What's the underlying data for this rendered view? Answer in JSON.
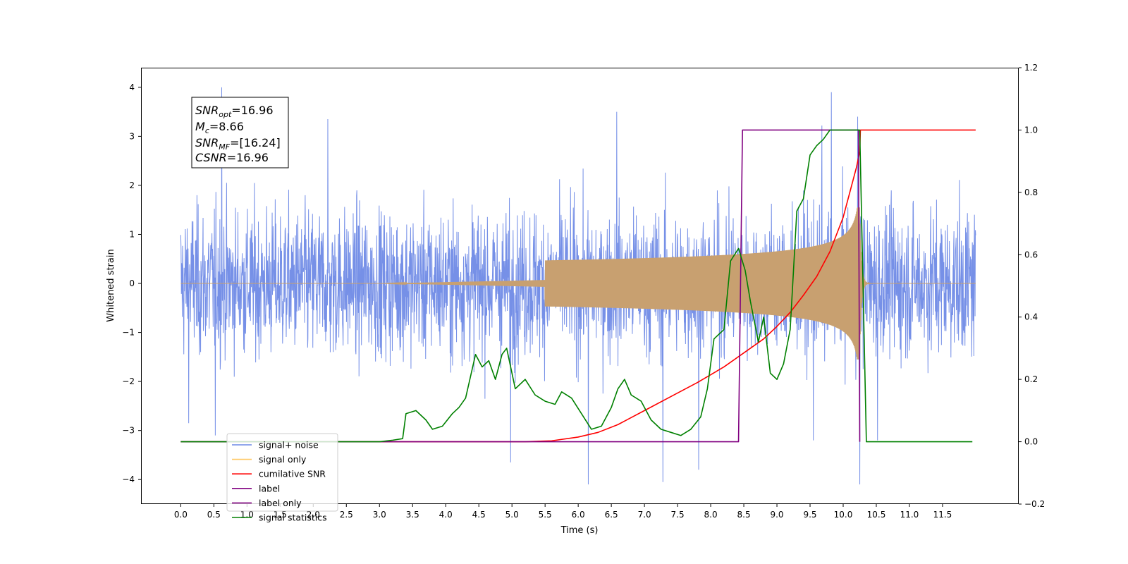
{
  "chart_data": {
    "type": "line",
    "xlabel": "Time (s)",
    "ylabel": "Whitened strain",
    "xlim": [
      -0.6,
      12.65
    ],
    "ylim": [
      -4.5,
      4.4
    ],
    "y2lim": [
      -0.2,
      1.2
    ],
    "x_ticks": [
      0.0,
      0.5,
      1.0,
      1.5,
      2.0,
      2.5,
      3.0,
      3.5,
      4.0,
      4.5,
      5.0,
      5.5,
      6.0,
      6.5,
      7.0,
      7.5,
      8.0,
      8.5,
      9.0,
      9.5,
      10.0,
      10.5,
      11.0,
      11.5
    ],
    "x_tick_labels": [
      "0.0",
      "0.5",
      "1.0",
      "1.5",
      "2.0",
      "2.5",
      "3.0",
      "3.5",
      "4.0",
      "4.5",
      "5.0",
      "5.5",
      "6.0",
      "6.5",
      "7.0",
      "7.5",
      "8.0",
      "8.5",
      "9.0",
      "9.5",
      "10.0",
      "10.5",
      "11.0",
      "11.5"
    ],
    "y_ticks": [
      -4,
      -3,
      -2,
      -1,
      0,
      1,
      2,
      3,
      4
    ],
    "y_tick_labels": [
      "−4",
      "−3",
      "−2",
      "−1",
      "0",
      "1",
      "2",
      "3",
      "4"
    ],
    "y2_ticks": [
      -0.2,
      0.0,
      0.2,
      0.4,
      0.6,
      0.8,
      1.0,
      1.2
    ],
    "y2_tick_labels": [
      "−0.2",
      "0.0",
      "0.2",
      "0.4",
      "0.6",
      "0.8",
      "1.0",
      "1.2"
    ],
    "annotation": {
      "lines": [
        {
          "base": "SNR",
          "sub": "opt",
          "value": "=16.96"
        },
        {
          "base": "M",
          "sub": "c",
          "value": "=8.66"
        },
        {
          "base": "SNR",
          "sub": "MF",
          "value": "=[16.24]"
        },
        {
          "base": "CSNR",
          "sub": "",
          "value": "=16.96"
        }
      ]
    },
    "legend": {
      "placement": "lower-left",
      "entries": [
        {
          "label": "signal+ noise",
          "color": "#6f8ae6"
        },
        {
          "label": "signal only",
          "color": "#ffc966"
        },
        {
          "label": "cumilative SNR",
          "color": "#ff0000"
        },
        {
          "label": "label",
          "color": "#800080"
        },
        {
          "label": "label only",
          "color": "#800080"
        },
        {
          "label": "signal statistics",
          "color": "#008000"
        }
      ]
    },
    "series": [
      {
        "name": "signal+ noise",
        "axis": "left",
        "kind": "noise",
        "color": "#6f8ae6",
        "x_range": [
          0.0,
          12.0
        ],
        "spikes": [
          [
            0.62,
            4.0
          ],
          [
            9.82,
            3.9
          ],
          [
            2.22,
            3.35
          ],
          [
            10.22,
            3.4
          ],
          [
            6.58,
            3.5
          ],
          [
            9.68,
            3.22
          ],
          [
            0.12,
            -2.85
          ],
          [
            0.52,
            -3.1
          ],
          [
            4.98,
            -3.65
          ],
          [
            6.15,
            -4.1
          ],
          [
            7.28,
            -4.05
          ],
          [
            10.25,
            -4.1
          ],
          [
            7.82,
            -3.8
          ],
          [
            9.55,
            -3.2
          ],
          [
            10.52,
            -3.2
          ],
          [
            1.05,
            -3.0
          ]
        ]
      },
      {
        "name": "signal only",
        "axis": "left",
        "kind": "chirp",
        "color": "#c8a070",
        "x_range": [
          0.0,
          12.0
        ],
        "merger": 10.25,
        "peak_amplitude": 1.55
      },
      {
        "name": "cumilative SNR",
        "axis": "right",
        "color": "#ff0000",
        "x": [
          0.0,
          5.2,
          5.6,
          6.0,
          6.3,
          6.6,
          7.0,
          7.4,
          7.8,
          8.2,
          8.5,
          8.8,
          9.0,
          9.2,
          9.4,
          9.6,
          9.8,
          10.0,
          10.1,
          10.2,
          10.25,
          10.26,
          12.0
        ],
        "y": [
          0.0,
          0.0,
          0.003,
          0.015,
          0.03,
          0.055,
          0.1,
          0.145,
          0.19,
          0.24,
          0.285,
          0.33,
          0.37,
          0.415,
          0.47,
          0.53,
          0.61,
          0.72,
          0.8,
          0.88,
          0.93,
          1.0,
          1.0
        ]
      },
      {
        "name": "label",
        "axis": "right",
        "color": "#800080",
        "x": [
          0.0,
          8.42,
          8.48,
          10.23,
          10.25
        ],
        "y": [
          0.0,
          0.0,
          1.0,
          1.0,
          0.0
        ]
      },
      {
        "name": "signal statistics",
        "axis": "right",
        "color": "#008000",
        "x": [
          0.0,
          3.0,
          3.2,
          3.35,
          3.4,
          3.55,
          3.7,
          3.8,
          3.95,
          4.1,
          4.2,
          4.3,
          4.45,
          4.55,
          4.65,
          4.75,
          4.85,
          4.92,
          5.05,
          5.2,
          5.35,
          5.5,
          5.65,
          5.75,
          5.9,
          6.05,
          6.2,
          6.35,
          6.5,
          6.6,
          6.7,
          6.8,
          6.95,
          7.1,
          7.25,
          7.4,
          7.55,
          7.7,
          7.85,
          7.95,
          8.05,
          8.2,
          8.3,
          8.42,
          8.52,
          8.6,
          8.72,
          8.8,
          8.9,
          9.0,
          9.1,
          9.2,
          9.3,
          9.4,
          9.5,
          9.6,
          9.7,
          9.8,
          9.9,
          10.0,
          10.15,
          10.25,
          10.35,
          11.95
        ],
        "y": [
          0.0,
          0.0,
          0.005,
          0.01,
          0.09,
          0.1,
          0.07,
          0.04,
          0.05,
          0.09,
          0.11,
          0.14,
          0.28,
          0.24,
          0.26,
          0.2,
          0.28,
          0.3,
          0.17,
          0.2,
          0.15,
          0.13,
          0.12,
          0.16,
          0.14,
          0.09,
          0.04,
          0.05,
          0.11,
          0.17,
          0.2,
          0.15,
          0.13,
          0.07,
          0.04,
          0.03,
          0.02,
          0.04,
          0.08,
          0.17,
          0.33,
          0.36,
          0.58,
          0.62,
          0.55,
          0.45,
          0.32,
          0.4,
          0.22,
          0.2,
          0.25,
          0.36,
          0.74,
          0.78,
          0.92,
          0.95,
          0.97,
          1.0,
          1.0,
          1.0,
          1.0,
          1.0,
          0.0,
          0.0
        ]
      }
    ]
  }
}
